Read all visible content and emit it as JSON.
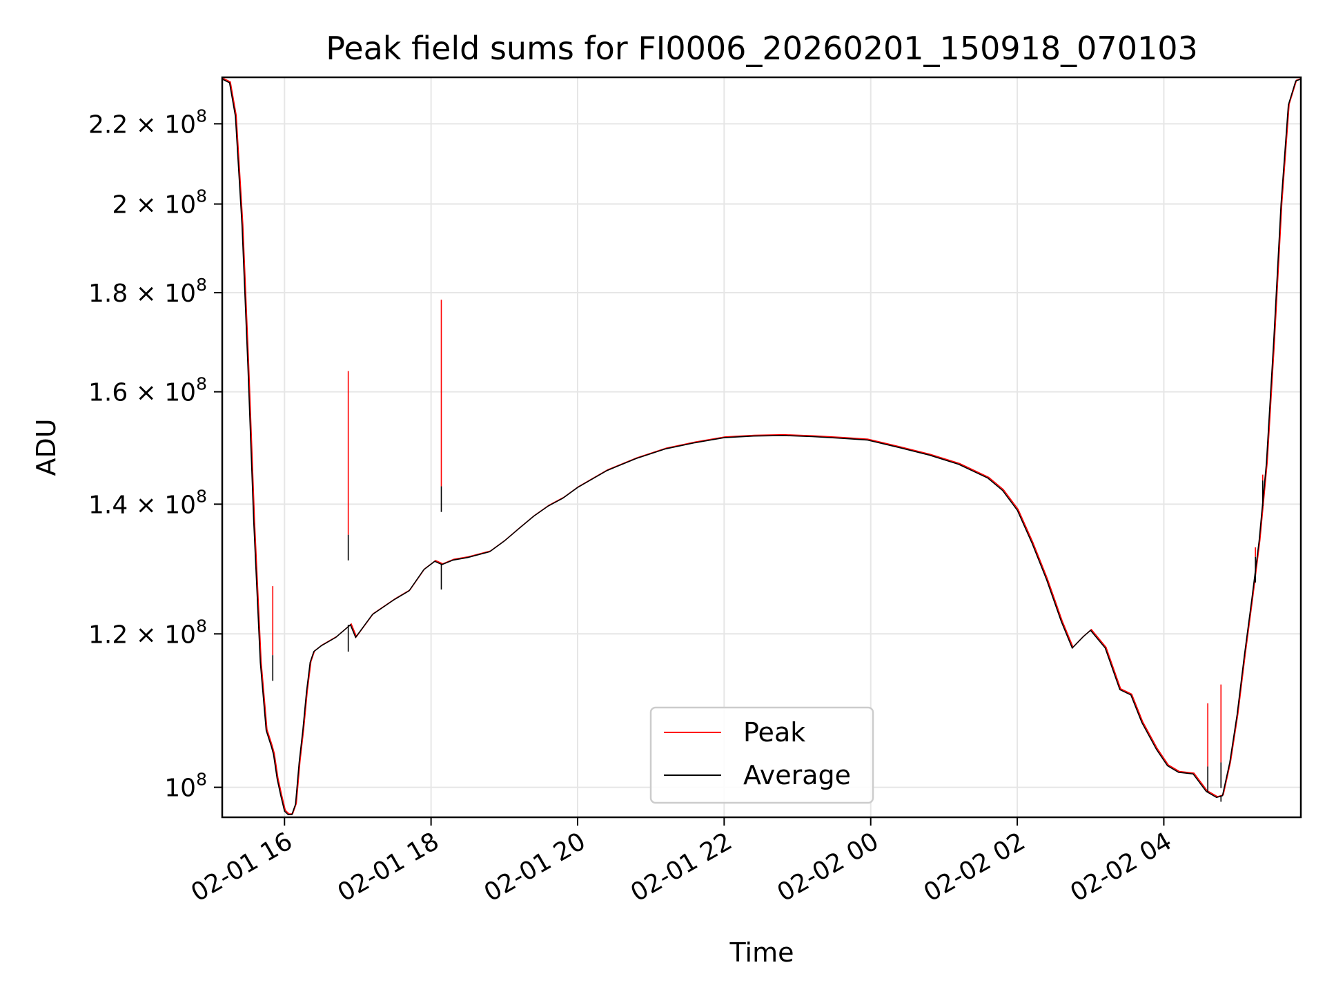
{
  "chart_data": {
    "type": "line",
    "title": "Peak field sums for FI0006_20260201_150918_070103",
    "xlabel": "Time",
    "ylabel": "ADU",
    "yscale": "log",
    "xlim_hours": [
      15.15,
      29.87
    ],
    "ylim": [
      96500000,
      232500000
    ],
    "grid": true,
    "legend_position": "lower center",
    "x_ticks": [
      {
        "hours": 16,
        "label": "02-01 16"
      },
      {
        "hours": 18,
        "label": "02-01 18"
      },
      {
        "hours": 20,
        "label": "02-01 20"
      },
      {
        "hours": 22,
        "label": "02-01 22"
      },
      {
        "hours": 24,
        "label": "02-02 00"
      },
      {
        "hours": 26,
        "label": "02-02 02"
      },
      {
        "hours": 28,
        "label": "02-02 04"
      }
    ],
    "y_ticks": [
      {
        "value": 100000000,
        "mantissa": "10",
        "exponent": "8"
      },
      {
        "value": 120000000,
        "mantissa": "1.2 × 10",
        "exponent": "8"
      },
      {
        "value": 140000000,
        "mantissa": "1.4 × 10",
        "exponent": "8"
      },
      {
        "value": 160000000,
        "mantissa": "1.6 × 10",
        "exponent": "8"
      },
      {
        "value": 180000000,
        "mantissa": "1.8 × 10",
        "exponent": "8"
      },
      {
        "value": 200000000,
        "mantissa": "2 × 10",
        "exponent": "8"
      },
      {
        "value": 220000000,
        "mantissa": "2.2 × 10",
        "exponent": "8"
      }
    ],
    "series": [
      {
        "name": "Peak",
        "color": "#ff0000"
      },
      {
        "name": "Average",
        "color": "#000000"
      }
    ],
    "x_hours": [
      15.15,
      15.25,
      15.33,
      15.42,
      15.5,
      15.58,
      15.67,
      15.75,
      15.82,
      15.85,
      15.9,
      15.95,
      16.0,
      16.05,
      16.1,
      16.15,
      16.2,
      16.25,
      16.3,
      16.35,
      16.4,
      16.5,
      16.7,
      16.9,
      16.97,
      17.2,
      17.5,
      17.7,
      17.9,
      18.05,
      18.15,
      18.3,
      18.5,
      18.8,
      19.0,
      19.2,
      19.4,
      19.6,
      19.8,
      20.0,
      20.4,
      20.8,
      21.2,
      21.6,
      22.0,
      22.4,
      22.8,
      23.2,
      23.6,
      23.95,
      24.4,
      24.8,
      25.2,
      25.6,
      25.8,
      26.0,
      26.2,
      26.4,
      26.6,
      26.75,
      26.9,
      27.0,
      27.2,
      27.4,
      27.55,
      27.7,
      27.9,
      28.05,
      28.2,
      28.4,
      28.58,
      28.72,
      28.8,
      28.9,
      29.0,
      29.1,
      29.2,
      29.3,
      29.4,
      29.5,
      29.6,
      29.7,
      29.8,
      29.87
    ],
    "average_values": [
      232000000,
      231000000,
      222000000,
      195000000,
      165000000,
      137000000,
      116000000,
      107000000,
      105000000,
      104000000,
      101000000,
      99000000,
      97200000,
      96800000,
      96800000,
      98000000,
      103000000,
      107000000,
      112000000,
      116000000,
      117500000,
      118300000,
      119500000,
      121300000,
      119500000,
      122800000,
      125000000,
      126300000,
      129500000,
      130800000,
      130300000,
      131000000,
      131400000,
      132300000,
      134000000,
      136000000,
      138000000,
      139700000,
      141000000,
      142800000,
      145700000,
      147800000,
      149500000,
      150600000,
      151500000,
      151800000,
      151900000,
      151700000,
      151400000,
      151100000,
      149700000,
      148400000,
      146800000,
      144400000,
      142300000,
      139000000,
      133700000,
      128000000,
      121800000,
      118000000,
      119600000,
      120500000,
      118000000,
      112300000,
      111600000,
      108000000,
      104600000,
      102600000,
      101800000,
      101600000,
      99500000,
      98800000,
      99000000,
      103000000,
      109000000,
      117000000,
      125000000,
      134000000,
      147000000,
      170000000,
      200000000,
      225000000,
      231500000,
      232000000
    ],
    "peak_spikes": [
      {
        "hours": 15.84,
        "peak": 127000000,
        "average": 117000000
      },
      {
        "hours": 16.87,
        "peak": 164000000,
        "average": 135000000
      },
      {
        "hours": 18.14,
        "peak": 178500000,
        "average": 143000000
      },
      {
        "hours": 28.6,
        "peak": 110500000,
        "average": 102500000
      },
      {
        "hours": 28.78,
        "peak": 113000000,
        "average": 103000000
      },
      {
        "hours": 29.25,
        "peak": 133000000,
        "average": 131500000
      },
      {
        "hours": 29.35,
        "peak": 145000000,
        "average": 144000000
      }
    ],
    "average_dips": [
      {
        "hours": 16.87,
        "value": 117500000
      },
      {
        "hours": 18.14,
        "value": 126500000
      },
      {
        "hours": 28.78,
        "value": 98300000
      }
    ]
  }
}
